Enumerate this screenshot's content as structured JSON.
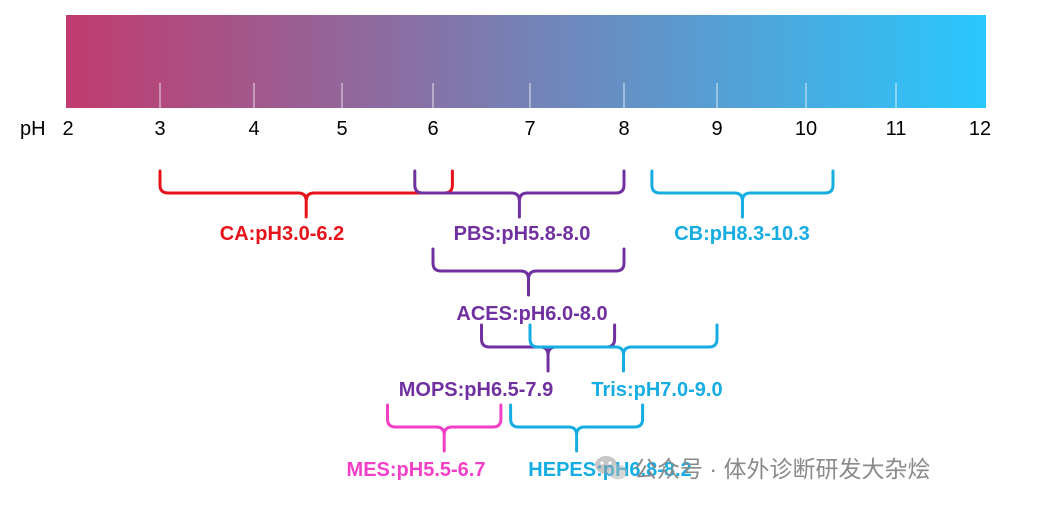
{
  "scale": {
    "axis_label": "pH",
    "min": 2,
    "max": 12,
    "ticks": [
      "2",
      "3",
      "4",
      "5",
      "6",
      "7",
      "8",
      "9",
      "10",
      "11",
      "12"
    ],
    "gradient_colors": [
      "#c13b6f",
      "#29c8fd"
    ]
  },
  "buffers": [
    {
      "label": "CA:pH3.0-6.2",
      "from": 3.0,
      "to": 6.2,
      "color": "#e8131a"
    },
    {
      "label": "PBS:pH5.8-8.0",
      "from": 5.8,
      "to": 8.0,
      "color": "#7030a0"
    },
    {
      "label": "CB:pH8.3-10.3",
      "from": 8.3,
      "to": 10.3,
      "color": "#16ade3"
    },
    {
      "label": "ACES:pH6.0-8.0",
      "from": 6.0,
      "to": 8.0,
      "color": "#7030a0"
    },
    {
      "label": "MOPS:pH6.5-7.9",
      "from": 6.5,
      "to": 7.9,
      "color": "#7030a0"
    },
    {
      "label": "Tris:pH7.0-9.0",
      "from": 7.0,
      "to": 9.0,
      "color": "#16ade3"
    },
    {
      "label": "MES:pH5.5-6.7",
      "from": 5.5,
      "to": 6.7,
      "color": "#f23fc8"
    },
    {
      "label": "HEPES:pH6.8-8.2",
      "from": 6.8,
      "to": 8.2,
      "color": "#16ade3"
    }
  ],
  "watermark": {
    "text": "公众号 · 体外诊断研发大杂烩",
    "icon": "wechat-icon",
    "color": "#8a8a8a"
  }
}
